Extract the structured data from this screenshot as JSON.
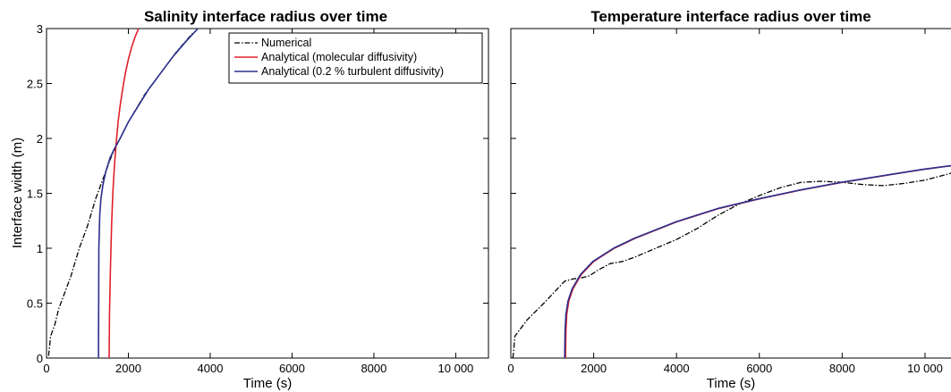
{
  "colors": {
    "numerical": "#000000",
    "molecular": "#e0202a",
    "turbulent": "#2b2f8c"
  },
  "chart_data": [
    {
      "type": "line",
      "title": "Salinity interface radius over time",
      "xlabel": "Time (s)",
      "ylabel": "Interface width (m)",
      "xlim": [
        0,
        10800
      ],
      "ylim": [
        0,
        3
      ],
      "xticks": [
        0,
        2000,
        4000,
        6000,
        8000,
        10000
      ],
      "xtick_labels": [
        "0",
        "2000",
        "4000",
        "6000",
        "8000",
        "10 000"
      ],
      "yticks": [
        0,
        0.5,
        1,
        1.5,
        2,
        2.5,
        3
      ],
      "ytick_labels": [
        "0",
        "0.5",
        "1",
        "1.5",
        "2",
        "2.5",
        "3"
      ],
      "grid": false,
      "legend": {
        "position": "top-right",
        "entries": [
          {
            "label": "Numerical",
            "series": "numerical"
          },
          {
            "label": "Analytical (molecular diffusivity)",
            "series": "molecular"
          },
          {
            "label": "Analytical (0.2 % turbulent diffusivity)",
            "series": "turbulent"
          }
        ]
      },
      "series": [
        {
          "name": "Numerical",
          "style": "dashdot",
          "x": [
            50,
            100,
            200,
            300,
            400,
            600,
            800,
            1000,
            1200,
            1400,
            1600,
            1800,
            2000,
            2400,
            2800,
            3200,
            3600
          ],
          "y": [
            0.02,
            0.2,
            0.3,
            0.45,
            0.55,
            0.75,
            1.0,
            1.2,
            1.45,
            1.65,
            1.85,
            2.0,
            2.15,
            2.4,
            2.6,
            2.8,
            2.97
          ]
        },
        {
          "name": "Analytical (molecular diffusivity)",
          "style": "solid",
          "x": [
            1530,
            1540,
            1560,
            1590,
            1620,
            1660,
            1700,
            1750,
            1800,
            1860,
            1930,
            2000,
            2080,
            2170,
            2250
          ],
          "y": [
            0.0,
            0.4,
            0.8,
            1.2,
            1.5,
            1.75,
            1.95,
            2.15,
            2.3,
            2.45,
            2.6,
            2.72,
            2.83,
            2.93,
            3.0
          ]
        },
        {
          "name": "Analytical (0.2 % turbulent diffusivity)",
          "style": "solid",
          "x": [
            1270,
            1280,
            1300,
            1330,
            1380,
            1450,
            1550,
            1650,
            1800,
            2000,
            2250,
            2500,
            2800,
            3100,
            3400,
            3700
          ],
          "y": [
            0.0,
            1.0,
            1.3,
            1.45,
            1.58,
            1.7,
            1.82,
            1.9,
            2.0,
            2.15,
            2.3,
            2.45,
            2.6,
            2.75,
            2.88,
            3.0
          ]
        }
      ]
    },
    {
      "type": "line",
      "title": "Temperature interface radius over time",
      "xlabel": "Time (s)",
      "xlim": [
        0,
        10800
      ],
      "ylim": [
        0,
        3
      ],
      "xticks": [
        0,
        2000,
        4000,
        6000,
        8000,
        10000
      ],
      "xtick_labels": [
        "0",
        "2000",
        "4000",
        "6000",
        "8000",
        "10 000"
      ],
      "grid": false,
      "series": [
        {
          "name": "Numerical",
          "style": "dashdot",
          "x": [
            50,
            100,
            400,
            800,
            1100,
            1300,
            1500,
            1700,
            1900,
            2100,
            2400,
            2700,
            3000,
            3500,
            4000,
            4500,
            5000,
            5500,
            6000,
            6500,
            7000,
            7500,
            8000,
            8500,
            9000,
            9500,
            10000,
            10500,
            10800
          ],
          "y": [
            0.0,
            0.2,
            0.35,
            0.5,
            0.62,
            0.7,
            0.72,
            0.73,
            0.75,
            0.8,
            0.86,
            0.88,
            0.92,
            1.0,
            1.08,
            1.18,
            1.3,
            1.4,
            1.48,
            1.55,
            1.6,
            1.61,
            1.6,
            1.58,
            1.57,
            1.59,
            1.62,
            1.67,
            1.7
          ]
        },
        {
          "name": "Analytical (molecular diffusivity)",
          "style": "solid",
          "x": [
            1320,
            1330,
            1350,
            1400,
            1500,
            1700,
            2000,
            2500,
            3000,
            4000,
            5000,
            6000,
            7000,
            8000,
            9000,
            10000,
            10800
          ],
          "y": [
            0.0,
            0.25,
            0.4,
            0.52,
            0.63,
            0.76,
            0.88,
            1.0,
            1.09,
            1.24,
            1.36,
            1.45,
            1.53,
            1.6,
            1.66,
            1.72,
            1.76
          ]
        },
        {
          "name": "Analytical (0.2 % turbulent diffusivity)",
          "style": "solid",
          "x": [
            1300,
            1310,
            1330,
            1380,
            1480,
            1680,
            1980,
            2480,
            2980,
            3980,
            4980,
            5980,
            6980,
            7980,
            8980,
            9980,
            10800
          ],
          "y": [
            0.0,
            0.25,
            0.4,
            0.52,
            0.63,
            0.76,
            0.88,
            1.0,
            1.09,
            1.24,
            1.36,
            1.45,
            1.53,
            1.6,
            1.66,
            1.72,
            1.76
          ]
        }
      ]
    }
  ]
}
